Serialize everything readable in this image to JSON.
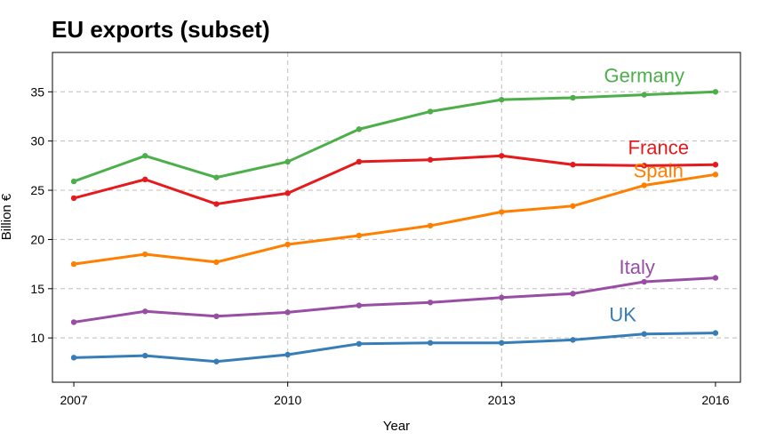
{
  "chart_data": {
    "type": "line",
    "title": "EU exports (subset)",
    "xlabel": "Year",
    "ylabel": "Billion €",
    "x": [
      2007,
      2008,
      2009,
      2010,
      2011,
      2012,
      2013,
      2014,
      2015,
      2016
    ],
    "x_ticks": [
      2007,
      2010,
      2013,
      2016
    ],
    "y_ticks": [
      10,
      15,
      20,
      25,
      30,
      35
    ],
    "xlim": [
      2006.7,
      2016.35
    ],
    "ylim": [
      5.5,
      39
    ],
    "grid": true,
    "legend": "direct labels",
    "series": [
      {
        "name": "Germany",
        "color": "#4daf4a",
        "values": [
          25.9,
          28.5,
          26.3,
          27.9,
          31.2,
          33.0,
          34.2,
          34.4,
          34.7,
          35.0
        ]
      },
      {
        "name": "France",
        "color": "#e41a1c",
        "values": [
          24.2,
          26.1,
          23.6,
          24.7,
          27.9,
          28.1,
          28.5,
          27.6,
          27.5,
          27.6
        ]
      },
      {
        "name": "Spain",
        "color": "#ff7f00",
        "values": [
          17.5,
          18.5,
          17.7,
          19.5,
          20.4,
          21.4,
          22.8,
          23.4,
          25.5,
          26.6
        ]
      },
      {
        "name": "Italy",
        "color": "#984ea3",
        "values": [
          11.6,
          12.7,
          12.2,
          12.6,
          13.3,
          13.6,
          14.1,
          14.5,
          15.7,
          16.1
        ]
      },
      {
        "name": "UK",
        "color": "#377eb8",
        "values": [
          8.0,
          8.2,
          7.6,
          8.3,
          9.4,
          9.5,
          9.5,
          9.8,
          10.4,
          10.5
        ]
      }
    ]
  }
}
